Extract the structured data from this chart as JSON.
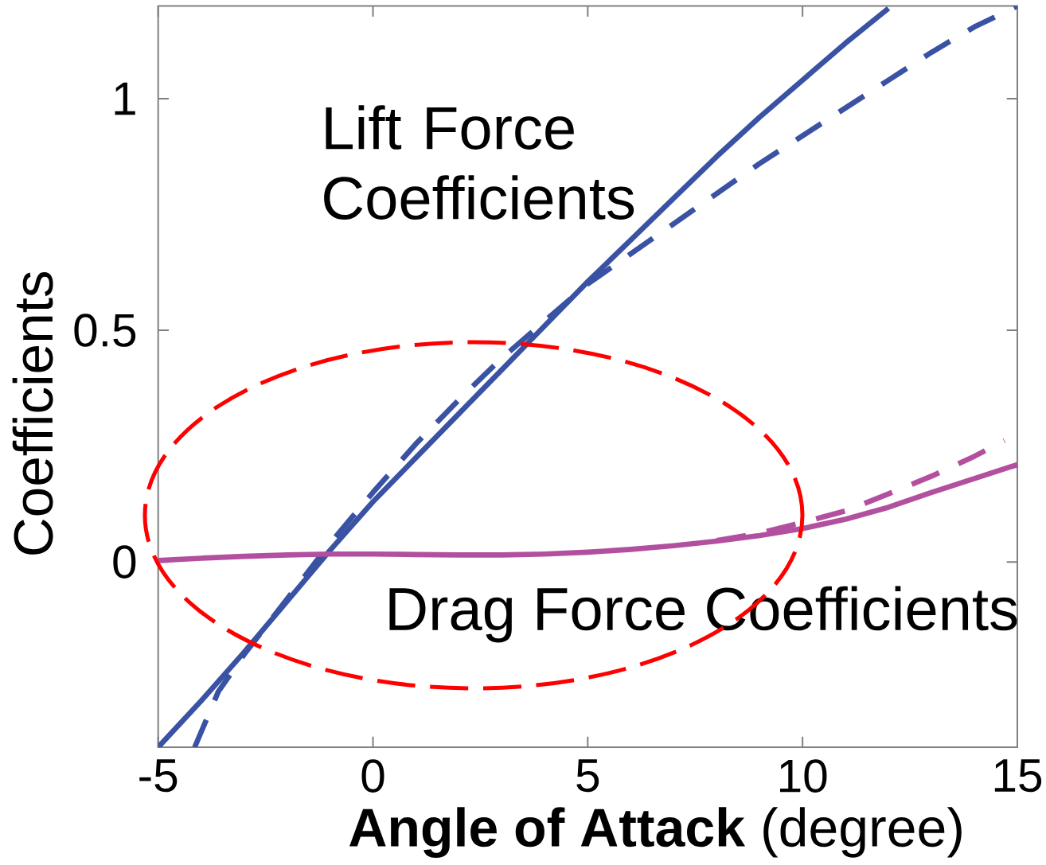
{
  "chart_data": {
    "type": "line",
    "xlabel": "**Angle of Attack** (degree)",
    "ylabel": "Coefficients",
    "annotations": [
      "Lift Force Coefficients",
      "Drag Force Coefficients"
    ],
    "series": [
      {
        "color": "#3a52a3",
        "line_style": "solid",
        "x": [
          -5,
          -4,
          -3,
          -2,
          -1,
          0,
          1,
          2,
          3,
          4,
          5,
          6,
          7,
          8,
          9,
          10,
          11,
          12
        ],
        "values": [
          -0.4,
          -0.3,
          -0.195,
          -0.085,
          0.025,
          0.13,
          0.225,
          0.32,
          0.415,
          0.51,
          0.605,
          0.695,
          0.785,
          0.875,
          0.96,
          1.04,
          1.12,
          1.195
        ]
      },
      {
        "color": "#3a52a3",
        "line_style": "dashed",
        "x": [
          -4.15,
          -3.6,
          -3,
          -2,
          -1,
          0,
          1,
          2,
          3,
          4,
          5,
          6,
          7,
          8,
          9,
          10,
          11,
          12,
          13,
          14,
          15
        ],
        "values": [
          -0.4,
          -0.28,
          -0.2,
          -0.08,
          0.04,
          0.15,
          0.255,
          0.35,
          0.44,
          0.52,
          0.6,
          0.665,
          0.73,
          0.795,
          0.86,
          0.92,
          0.98,
          1.04,
          1.1,
          1.155,
          1.2
        ]
      },
      {
        "color": "#b2509f",
        "line_style": "solid",
        "x": [
          -5,
          -4,
          -3,
          -2,
          -1,
          0,
          1,
          2,
          3,
          4,
          5,
          6,
          7,
          8,
          9,
          10,
          11,
          12,
          13,
          14,
          15
        ],
        "values": [
          0.003,
          0.008,
          0.012,
          0.015,
          0.017,
          0.017,
          0.016,
          0.015,
          0.015,
          0.017,
          0.021,
          0.027,
          0.035,
          0.045,
          0.057,
          0.072,
          0.092,
          0.118,
          0.15,
          0.18,
          0.21
        ]
      },
      {
        "color": "#b2509f",
        "line_style": "dashed",
        "x": [
          8,
          9,
          10,
          11,
          12,
          13,
          14,
          14.7
        ],
        "values": [
          0.046,
          0.062,
          0.085,
          0.11,
          0.147,
          0.185,
          0.228,
          0.262
        ]
      }
    ],
    "xlim": [
      -5,
      15
    ],
    "ylim": [
      -0.4,
      1.2
    ],
    "xticks": [
      -5,
      0,
      5,
      10,
      15
    ],
    "yticks": [
      0,
      0.5,
      1
    ]
  }
}
